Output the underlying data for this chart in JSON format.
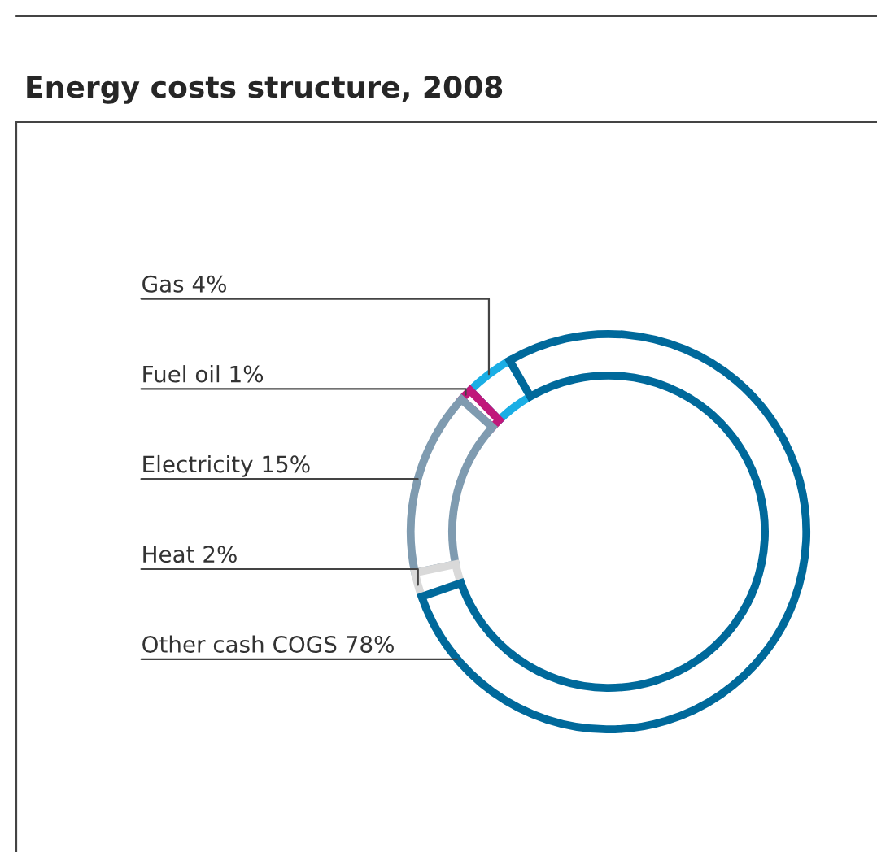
{
  "chart_data": {
    "type": "donut",
    "title": "Energy costs structure, 2008",
    "categories": [
      "Gas",
      "Fuel oil",
      "Electricity",
      "Heat",
      "Other cash COGS"
    ],
    "values": [
      4,
      1,
      15,
      2,
      78
    ],
    "value_labels": [
      "4%",
      "1%",
      "15%",
      "2%",
      "78%"
    ],
    "colors": [
      "#1aaee5",
      "#c0187a",
      "#7f9bb0",
      "#d9d9d9",
      "#00699b"
    ]
  }
}
